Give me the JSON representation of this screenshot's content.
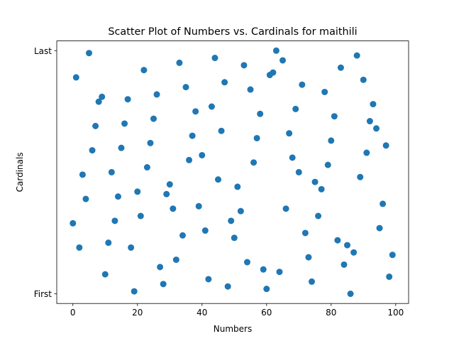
{
  "chart_data": {
    "type": "scatter",
    "title": "Scatter Plot of Numbers vs. Cardinals for maithili",
    "xlabel": "Numbers",
    "ylabel": "Cardinals",
    "xlim": [
      -5,
      104
    ],
    "ylim": [
      -0.04,
      1.04
    ],
    "x_ticks": [
      0,
      20,
      40,
      60,
      80,
      100
    ],
    "x_tick_labels": [
      "0",
      "20",
      "40",
      "60",
      "80",
      "100"
    ],
    "y_ticks": [
      0,
      1
    ],
    "y_tick_labels": [
      "First",
      "Last"
    ],
    "grid": false,
    "marker_color": "#1f77b4",
    "points": [
      [
        0,
        0.29
      ],
      [
        1,
        0.89
      ],
      [
        2,
        0.19
      ],
      [
        3,
        0.49
      ],
      [
        4,
        0.39
      ],
      [
        5,
        0.99
      ],
      [
        6,
        0.59
      ],
      [
        7,
        0.69
      ],
      [
        8,
        0.79
      ],
      [
        9,
        0.81
      ],
      [
        10,
        0.08
      ],
      [
        11,
        0.21
      ],
      [
        12,
        0.5
      ],
      [
        13,
        0.3
      ],
      [
        14,
        0.4
      ],
      [
        15,
        0.6
      ],
      [
        16,
        0.7
      ],
      [
        17,
        0.8
      ],
      [
        18,
        0.19
      ],
      [
        19,
        0.01
      ],
      [
        20,
        0.42
      ],
      [
        21,
        0.32
      ],
      [
        22,
        0.92
      ],
      [
        23,
        0.52
      ],
      [
        24,
        0.62
      ],
      [
        25,
        0.72
      ],
      [
        26,
        0.82
      ],
      [
        27,
        0.11
      ],
      [
        28,
        0.04
      ],
      [
        29,
        0.41
      ],
      [
        30,
        0.45
      ],
      [
        31,
        0.35
      ],
      [
        32,
        0.14
      ],
      [
        33,
        0.95
      ],
      [
        34,
        0.24
      ],
      [
        35,
        0.85
      ],
      [
        36,
        0.55
      ],
      [
        37,
        0.65
      ],
      [
        38,
        0.75
      ],
      [
        39,
        0.36
      ],
      [
        40,
        0.57
      ],
      [
        41,
        0.26
      ],
      [
        42,
        0.06
      ],
      [
        43,
        0.77
      ],
      [
        44,
        0.97
      ],
      [
        45,
        0.47
      ],
      [
        46,
        0.67
      ],
      [
        47,
        0.87
      ],
      [
        48,
        0.03
      ],
      [
        49,
        0.3
      ],
      [
        50,
        0.23
      ],
      [
        51,
        0.44
      ],
      [
        52,
        0.34
      ],
      [
        53,
        0.94
      ],
      [
        54,
        0.13
      ],
      [
        55,
        0.84
      ],
      [
        56,
        0.54
      ],
      [
        57,
        0.64
      ],
      [
        58,
        0.74
      ],
      [
        59,
        0.1
      ],
      [
        60,
        0.02
      ],
      [
        61,
        0.9
      ],
      [
        62,
        0.91
      ],
      [
        63,
        1.0
      ],
      [
        64,
        0.09
      ],
      [
        65,
        0.96
      ],
      [
        66,
        0.35
      ],
      [
        67,
        0.66
      ],
      [
        68,
        0.56
      ],
      [
        69,
        0.76
      ],
      [
        70,
        0.5
      ],
      [
        71,
        0.86
      ],
      [
        72,
        0.25
      ],
      [
        73,
        0.15
      ],
      [
        74,
        0.05
      ],
      [
        75,
        0.46
      ],
      [
        76,
        0.32
      ],
      [
        77,
        0.43
      ],
      [
        78,
        0.83
      ],
      [
        79,
        0.53
      ],
      [
        80,
        0.63
      ],
      [
        81,
        0.73
      ],
      [
        82,
        0.22
      ],
      [
        83,
        0.93
      ],
      [
        84,
        0.12
      ],
      [
        85,
        0.2
      ],
      [
        86,
        0.0
      ],
      [
        87,
        0.17
      ],
      [
        88,
        0.98
      ],
      [
        89,
        0.48
      ],
      [
        90,
        0.88
      ],
      [
        91,
        0.58
      ],
      [
        92,
        0.71
      ],
      [
        93,
        0.78
      ],
      [
        94,
        0.68
      ],
      [
        95,
        0.27
      ],
      [
        96,
        0.37
      ],
      [
        97,
        0.61
      ],
      [
        98,
        0.07
      ],
      [
        99,
        0.16
      ]
    ]
  }
}
